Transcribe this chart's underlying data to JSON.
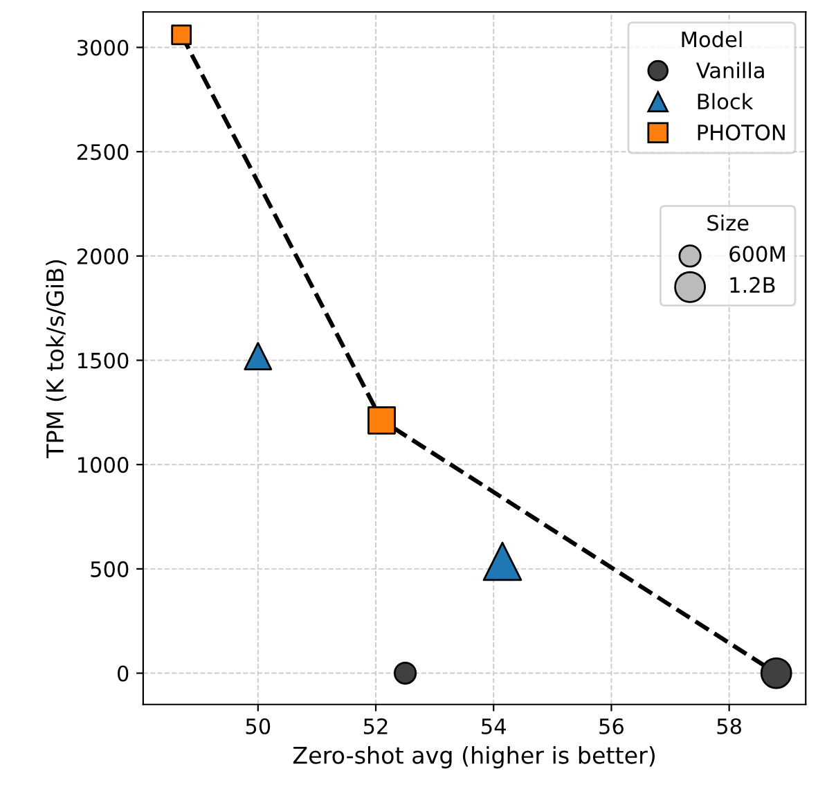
{
  "chart_data": {
    "type": "scatter",
    "xlabel": "Zero-shot avg (higher is better)",
    "ylabel": "TPM (K tok/s/GiB)",
    "xlim": [
      48.05,
      59.3
    ],
    "ylim": [
      -150,
      3170
    ],
    "xticks": [
      50,
      52,
      54,
      56,
      58
    ],
    "yticks": [
      0,
      500,
      1000,
      1500,
      2000,
      2500,
      3000
    ],
    "grid": true,
    "legend": "top right",
    "legend_title": [
      "Model",
      "Size"
    ],
    "size_legend": [
      {
        "value": 0.6,
        "label": "600M"
      },
      {
        "value": 1.2,
        "label": "1.2B"
      }
    ],
    "series": [
      {
        "type": "line",
        "x": [
          48.7,
          52.1,
          58.8
        ],
        "values": [
          3060,
          1212,
          0
        ],
        "color": "#000000",
        "line_style": "dashed",
        "marker": "none"
      },
      {
        "name": "Vanilla",
        "marker": "circle",
        "color": "#404040",
        "x": [
          52.5,
          58.8
        ],
        "values": [
          0,
          0
        ],
        "sizes": [
          0.6,
          1.2
        ]
      },
      {
        "name": "Block",
        "marker": "triangle",
        "color": "#1f77b4",
        "x": [
          50.0,
          54.15
        ],
        "values": [
          1520,
          536
        ],
        "sizes": [
          0.6,
          1.2
        ]
      },
      {
        "name": "PHOTON",
        "marker": "square",
        "color": "#ff7f0e",
        "x": [
          48.7,
          52.1
        ],
        "values": [
          3060,
          1212
        ],
        "sizes": [
          0.6,
          1.2
        ]
      }
    ]
  }
}
